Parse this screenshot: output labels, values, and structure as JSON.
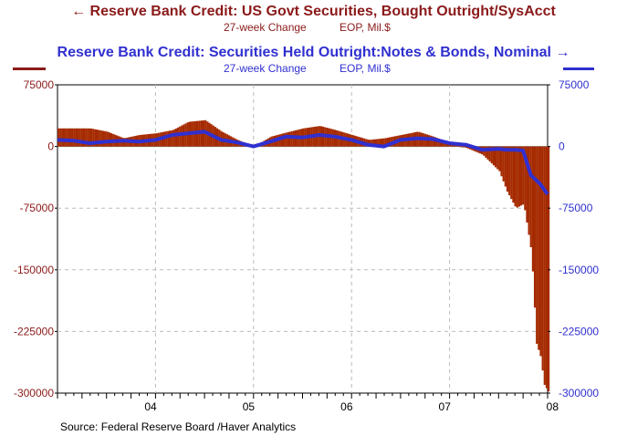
{
  "chart_data": {
    "type": "bar",
    "series": [
      {
        "name": "Reserve Bank Credit: US Govt Securities, Bought Outright/SysAcct",
        "subtitle_units": "27-week Change",
        "subtitle_eop": "EOP, Mil.$",
        "render": "bar",
        "color": "#a52a00",
        "axis": "left",
        "x": [
          2003.33,
          2003.5,
          2003.67,
          2003.83,
          2004.0,
          2004.17,
          2004.33,
          2004.5,
          2004.67,
          2004.83,
          2005.0,
          2005.17,
          2005.33,
          2005.5,
          2005.67,
          2005.83,
          2006.0,
          2006.17,
          2006.33,
          2006.5,
          2006.67,
          2006.83,
          2007.0,
          2007.17,
          2007.33,
          2007.5,
          2007.58,
          2007.67,
          2007.75,
          2007.83,
          2007.88,
          2007.92,
          2007.96,
          2008.0
        ],
        "values": [
          22000,
          18000,
          10000,
          14000,
          16000,
          20000,
          30000,
          32000,
          18000,
          8000,
          0,
          12000,
          17000,
          22000,
          25000,
          20000,
          14000,
          8000,
          10000,
          14000,
          18000,
          12000,
          4000,
          -2000,
          -10000,
          -30000,
          -55000,
          -75000,
          -70000,
          -130000,
          -240000,
          -255000,
          -290000,
          -298000
        ]
      },
      {
        "name": "Reserve Bank Credit: Securities Held Outright:Notes & Bonds, Nominal",
        "subtitle_units": "27-week Change",
        "subtitle_eop": "EOP, Mil.$",
        "render": "line",
        "color": "#3030d0",
        "axis": "right",
        "x": [
          2003.0,
          2003.17,
          2003.33,
          2003.5,
          2003.67,
          2003.83,
          2004.0,
          2004.17,
          2004.33,
          2004.5,
          2004.67,
          2004.83,
          2005.0,
          2005.17,
          2005.33,
          2005.5,
          2005.67,
          2005.83,
          2006.0,
          2006.17,
          2006.33,
          2006.5,
          2006.67,
          2006.83,
          2007.0,
          2007.17,
          2007.33,
          2007.5,
          2007.58,
          2007.67,
          2007.75,
          2007.83,
          2007.92,
          2008.0
        ],
        "values": [
          8000,
          7000,
          4000,
          6000,
          7000,
          6000,
          8000,
          14000,
          16000,
          18000,
          8000,
          5000,
          0,
          6000,
          12000,
          11000,
          14000,
          12000,
          8000,
          2000,
          0,
          8000,
          10000,
          9000,
          4000,
          2000,
          -4000,
          -3000,
          -4000,
          -4000,
          -5000,
          -35000,
          -45000,
          -58000
        ]
      }
    ],
    "x_ticks": [
      "04",
      "05",
      "06",
      "07",
      "08"
    ],
    "left_axis": {
      "ticks": [
        "75000",
        "0",
        "-75000",
        "-150000",
        "-225000",
        "-300000"
      ],
      "range": [
        -300000,
        75000
      ]
    },
    "right_axis": {
      "ticks": [
        "75000",
        "0",
        "-75000",
        "-150000",
        "-225000",
        "-300000"
      ],
      "range": [
        -300000,
        75000
      ]
    },
    "xlim": [
      2003.0,
      2008.0
    ],
    "grid": "dashed",
    "source": "Source:  Federal Reserve Board /Haver Analytics"
  },
  "legend": {
    "left_marker_color": "#8b1a1a",
    "right_marker_color": "#3030d0"
  }
}
